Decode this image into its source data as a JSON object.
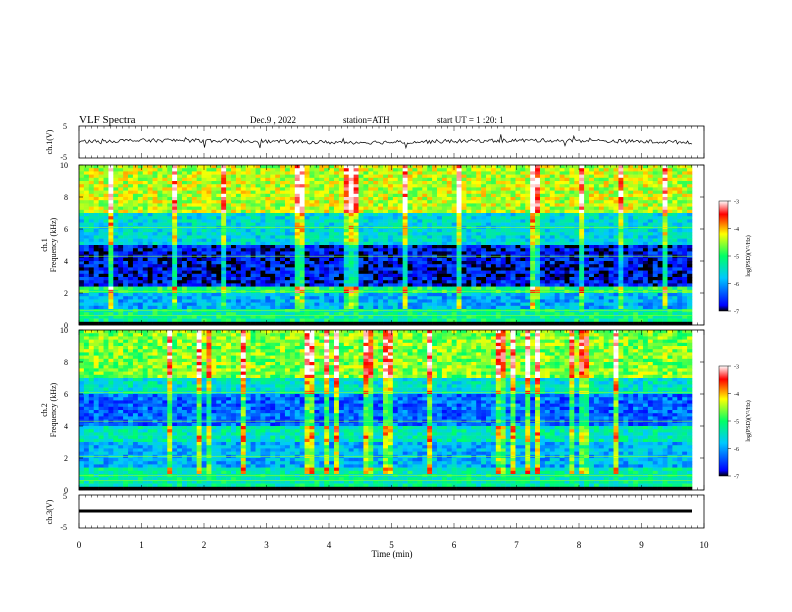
{
  "header": {
    "title": "VLF Spectra",
    "date": "Dec.9 , 2022",
    "station": "station=ATH",
    "start": "start UT = 1 :20: 1"
  },
  "chart_data": [
    {
      "type": "line",
      "panel": "ch1-waveform",
      "ylabel": "ch.1(V)",
      "y_ticks": [
        "5",
        "-5"
      ],
      "ylim": [
        -5,
        5
      ],
      "description_values": {
        "baseline_V": 0.2,
        "noise_amplitude_V": 0.6
      }
    },
    {
      "type": "heatmap",
      "panel": "ch1-spectrogram",
      "ylabel": "ch.1\nFrequency (kHz)",
      "y_ticks": [
        "0",
        "2",
        "4",
        "6",
        "8",
        "10"
      ],
      "ylim": [
        0,
        10
      ],
      "xlim": [
        0,
        10
      ],
      "bands": [
        {
          "f_low": 0,
          "f_high": 0.3,
          "log_psd": -7
        },
        {
          "f_low": 0.3,
          "f_high": 1.0,
          "log_psd": -5.2
        },
        {
          "f_low": 1.0,
          "f_high": 2.0,
          "log_psd": -5.9
        },
        {
          "f_low": 2.0,
          "f_high": 2.4,
          "log_psd": -5.0
        },
        {
          "f_low": 2.4,
          "f_high": 5.0,
          "log_psd": -6.7
        },
        {
          "f_low": 5.0,
          "f_high": 7.0,
          "log_psd": -5.6
        },
        {
          "f_low": 7.0,
          "f_high": 10.0,
          "log_psd": -4.4
        }
      ]
    },
    {
      "type": "heatmap",
      "panel": "ch2-spectrogram",
      "ylabel": "ch.2\nFrequency (kHz)",
      "y_ticks": [
        "0",
        "2",
        "4",
        "6",
        "8",
        "10"
      ],
      "ylim": [
        0,
        10
      ],
      "xlim": [
        0,
        10
      ],
      "bands": [
        {
          "f_low": 0,
          "f_high": 0.3,
          "log_psd": -7
        },
        {
          "f_low": 0.3,
          "f_high": 1.5,
          "log_psd": -5.3
        },
        {
          "f_low": 1.5,
          "f_high": 3.0,
          "log_psd": -5.9
        },
        {
          "f_low": 3.0,
          "f_high": 4.0,
          "log_psd": -5.4
        },
        {
          "f_low": 4.0,
          "f_high": 6.0,
          "log_psd": -6.3
        },
        {
          "f_low": 6.0,
          "f_high": 7.0,
          "log_psd": -5.5
        },
        {
          "f_low": 7.0,
          "f_high": 10.0,
          "log_psd": -4.6
        }
      ]
    },
    {
      "type": "line",
      "panel": "ch3-waveform",
      "ylabel": "ch.3(V)",
      "y_ticks": [
        "5",
        "-5"
      ],
      "ylim": [
        -5,
        5
      ],
      "description_values": {
        "baseline_V": -0.9
      }
    }
  ],
  "x_axis": {
    "label": "Time (min)",
    "ticks": [
      "0",
      "1",
      "2",
      "3",
      "4",
      "5",
      "6",
      "7",
      "8",
      "9",
      "10"
    ],
    "xlim": [
      0,
      10
    ]
  },
  "colorbar": {
    "label": "log(PSD)(V²/Hz)",
    "ticks": [
      "-3",
      "-4",
      "-5",
      "-6",
      "-7"
    ],
    "range": [
      -7,
      -3
    ]
  },
  "colors": {
    "colormap": [
      "#000000",
      "#0000ff",
      "#00c8ff",
      "#00ff66",
      "#ffff00",
      "#ff0000",
      "#ffffff"
    ],
    "trace": "#000000"
  }
}
